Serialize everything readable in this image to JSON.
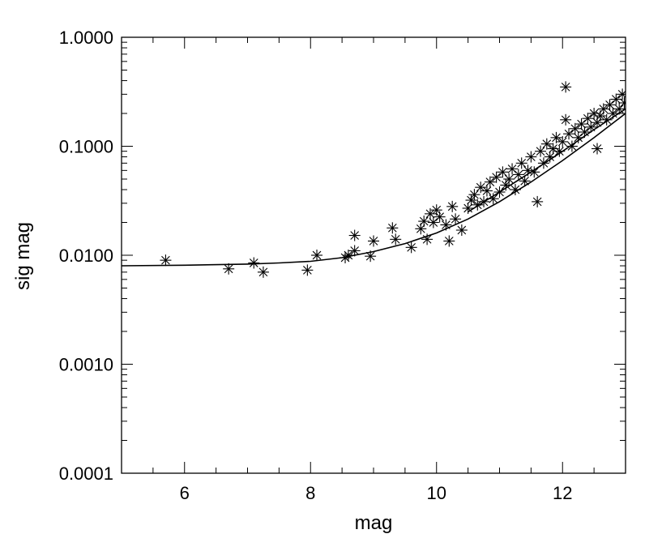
{
  "chart_data": {
    "type": "scatter",
    "title": "",
    "xlabel": "mag",
    "ylabel": "sig mag",
    "xlim": [
      5,
      13
    ],
    "ylim": [
      0.0001,
      1.0
    ],
    "y_scale": "log",
    "grid": false,
    "legend": "none",
    "x_ticks": [
      6,
      8,
      10,
      12
    ],
    "x_tick_labels": [
      "6",
      "8",
      "10",
      "12"
    ],
    "y_ticks": [
      0.0001,
      0.001,
      0.01,
      0.1,
      1.0
    ],
    "y_tick_labels": [
      "0.0001",
      "0.0010",
      "0.0100",
      "0.1000",
      "1.0000"
    ],
    "marker": "asterisk",
    "color": "#000000",
    "points": [
      [
        5.7,
        0.009
      ],
      [
        6.7,
        0.0075
      ],
      [
        7.1,
        0.0085
      ],
      [
        7.25,
        0.007
      ],
      [
        7.95,
        0.0073
      ],
      [
        8.1,
        0.01
      ],
      [
        8.55,
        0.0095
      ],
      [
        8.6,
        0.01
      ],
      [
        8.7,
        0.011
      ],
      [
        8.7,
        0.0152
      ],
      [
        8.95,
        0.0098
      ],
      [
        9.0,
        0.0135
      ],
      [
        9.3,
        0.0178
      ],
      [
        9.35,
        0.014
      ],
      [
        9.6,
        0.0118
      ],
      [
        9.75,
        0.0175
      ],
      [
        9.8,
        0.0205
      ],
      [
        9.85,
        0.014
      ],
      [
        9.9,
        0.024
      ],
      [
        9.95,
        0.02
      ],
      [
        10.0,
        0.026
      ],
      [
        10.05,
        0.0225
      ],
      [
        10.15,
        0.019
      ],
      [
        10.2,
        0.0135
      ],
      [
        10.25,
        0.028
      ],
      [
        10.3,
        0.0215
      ],
      [
        10.4,
        0.017
      ],
      [
        10.5,
        0.027
      ],
      [
        10.55,
        0.032
      ],
      [
        10.6,
        0.036
      ],
      [
        10.65,
        0.029
      ],
      [
        10.7,
        0.042
      ],
      [
        10.75,
        0.031
      ],
      [
        10.8,
        0.039
      ],
      [
        10.85,
        0.047
      ],
      [
        10.9,
        0.033
      ],
      [
        10.95,
        0.052
      ],
      [
        11.0,
        0.038
      ],
      [
        11.05,
        0.058
      ],
      [
        11.1,
        0.044
      ],
      [
        11.15,
        0.05
      ],
      [
        11.2,
        0.062
      ],
      [
        11.25,
        0.04
      ],
      [
        11.3,
        0.055
      ],
      [
        11.35,
        0.07
      ],
      [
        11.4,
        0.048
      ],
      [
        11.45,
        0.06
      ],
      [
        11.5,
        0.08
      ],
      [
        11.55,
        0.058
      ],
      [
        11.6,
        0.031
      ],
      [
        11.65,
        0.09
      ],
      [
        11.7,
        0.07
      ],
      [
        11.75,
        0.105
      ],
      [
        11.8,
        0.08
      ],
      [
        11.85,
        0.095
      ],
      [
        11.9,
        0.12
      ],
      [
        11.95,
        0.09
      ],
      [
        12.0,
        0.11
      ],
      [
        12.05,
        0.175
      ],
      [
        12.05,
        0.35
      ],
      [
        12.1,
        0.13
      ],
      [
        12.15,
        0.1
      ],
      [
        12.2,
        0.145
      ],
      [
        12.25,
        0.12
      ],
      [
        12.3,
        0.16
      ],
      [
        12.35,
        0.135
      ],
      [
        12.4,
        0.18
      ],
      [
        12.45,
        0.15
      ],
      [
        12.5,
        0.2
      ],
      [
        12.55,
        0.095
      ],
      [
        12.55,
        0.165
      ],
      [
        12.6,
        0.19
      ],
      [
        12.65,
        0.22
      ],
      [
        12.7,
        0.175
      ],
      [
        12.75,
        0.24
      ],
      [
        12.8,
        0.2
      ],
      [
        12.85,
        0.27
      ],
      [
        12.9,
        0.22
      ],
      [
        12.95,
        0.3
      ],
      [
        12.98,
        0.25
      ]
    ],
    "curves": [
      {
        "x": [
          5.0,
          6.0,
          7.0,
          7.5,
          8.0,
          8.5,
          9.0,
          9.5,
          10.0,
          10.5,
          11.0,
          11.5,
          12.0,
          12.5,
          13.0
        ],
        "y": [
          0.008,
          0.0081,
          0.0083,
          0.0085,
          0.0088,
          0.0095,
          0.0108,
          0.0128,
          0.016,
          0.0215,
          0.031,
          0.047,
          0.074,
          0.12,
          0.2
        ]
      },
      {
        "x": [
          10.5,
          11.0,
          11.5,
          12.0,
          12.5,
          13.0
        ],
        "y": [
          0.025,
          0.038,
          0.058,
          0.09,
          0.142,
          0.22
        ]
      }
    ]
  }
}
